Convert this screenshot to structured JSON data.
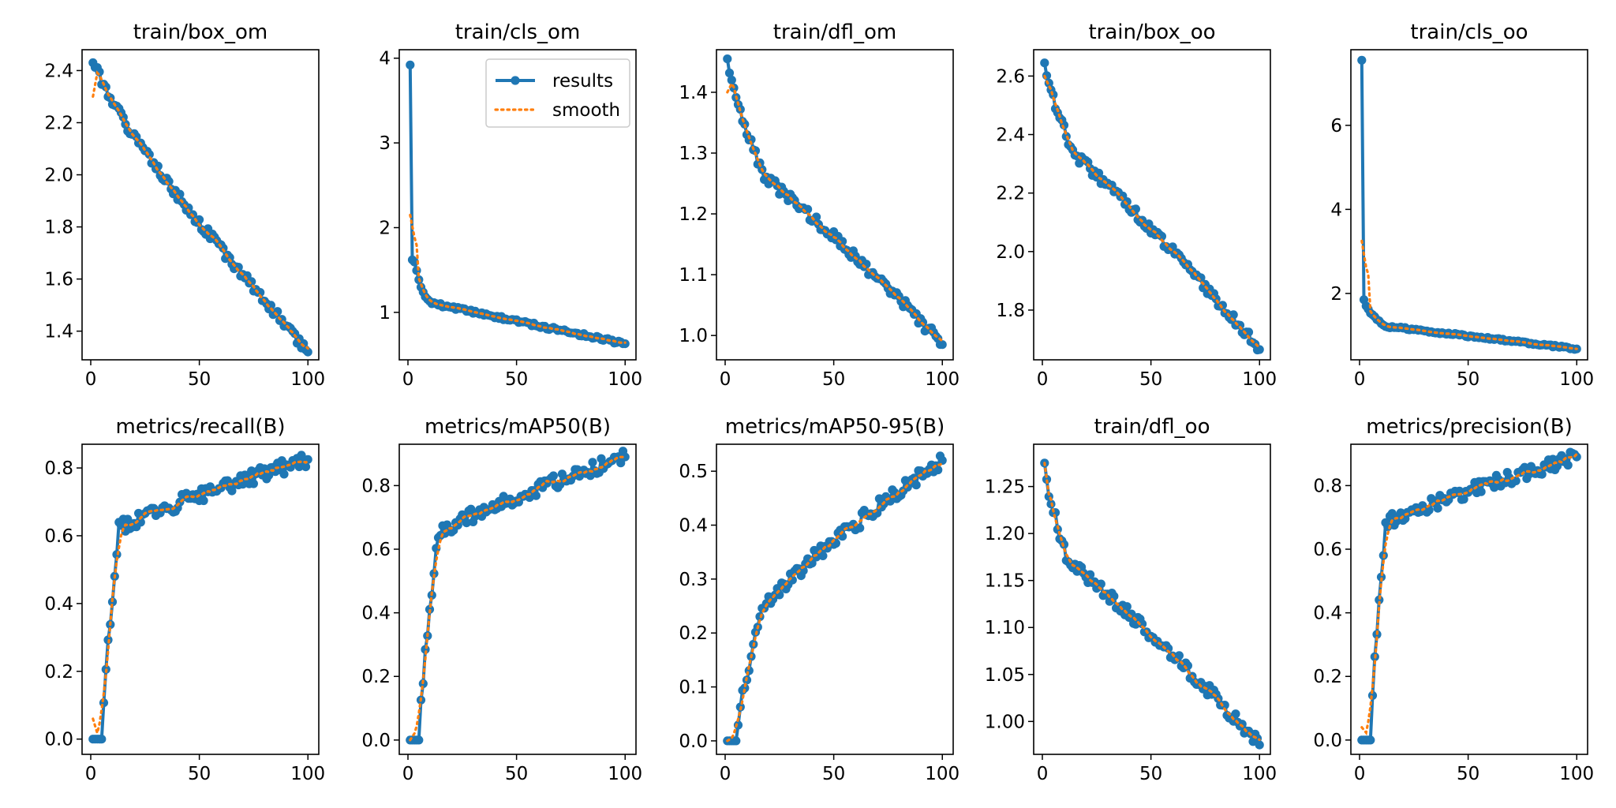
{
  "colors": {
    "results": "#1f77b4",
    "smooth": "#ff7f0e",
    "axes": "#000000",
    "background": "#ffffff"
  },
  "legend": {
    "entries": [
      "results",
      "smooth"
    ],
    "location": "upper-right",
    "panel": 1
  },
  "chart_data": [
    {
      "type": "line",
      "title": "train/box_om",
      "xlim": [
        -4,
        105
      ],
      "ylim": [
        1.29,
        2.48
      ],
      "xticks": [
        0,
        50,
        100
      ],
      "xtick_labels": [
        "0",
        "50",
        "100"
      ],
      "yticks": [
        1.4,
        1.6,
        1.8,
        2.0,
        2.2,
        2.4
      ],
      "ytick_labels": [
        "1.4",
        "1.6",
        "1.8",
        "2.0",
        "2.2",
        "2.4"
      ],
      "start": 2.43,
      "end": 1.32,
      "shape": "linear",
      "smooth_start": 2.3,
      "noise": 0.018,
      "seed": 1,
      "series": [
        {
          "name": "results"
        },
        {
          "name": "smooth"
        }
      ]
    },
    {
      "type": "line",
      "title": "train/cls_om",
      "xlim": [
        -4,
        105
      ],
      "ylim": [
        0.44,
        4.1
      ],
      "xticks": [
        0,
        50,
        100
      ],
      "xtick_labels": [
        "0",
        "50",
        "100"
      ],
      "yticks": [
        1,
        2,
        3,
        4
      ],
      "ytick_labels": [
        "1",
        "2",
        "3",
        "4"
      ],
      "start": 3.92,
      "end": 0.63,
      "shape": "spike",
      "second": 1.62,
      "third": 1.58,
      "knee_value": 1.1,
      "knee_x": 12,
      "smooth_start": 2.15,
      "noise": 0.02,
      "seed": 2,
      "series": [
        {
          "name": "results"
        },
        {
          "name": "smooth"
        }
      ]
    },
    {
      "type": "line",
      "title": "train/dfl_om",
      "xlim": [
        -4,
        105
      ],
      "ylim": [
        0.96,
        1.47
      ],
      "xticks": [
        0,
        50,
        100
      ],
      "xtick_labels": [
        "0",
        "50",
        "100"
      ],
      "yticks": [
        1.0,
        1.1,
        1.2,
        1.3,
        1.4
      ],
      "ytick_labels": [
        "1.0",
        "1.1",
        "1.2",
        "1.3",
        "1.4"
      ],
      "start": 1.455,
      "end": 0.985,
      "shape": "concave",
      "knee_value": 1.26,
      "knee_x": 18,
      "smooth_start": 1.4,
      "noise": 0.009,
      "seed": 3,
      "series": [
        {
          "name": "results"
        },
        {
          "name": "smooth"
        }
      ]
    },
    {
      "type": "line",
      "title": "train/box_oo",
      "xlim": [
        -4,
        105
      ],
      "ylim": [
        1.63,
        2.69
      ],
      "xticks": [
        0,
        50,
        100
      ],
      "xtick_labels": [
        "0",
        "50",
        "100"
      ],
      "yticks": [
        1.8,
        2.0,
        2.2,
        2.4,
        2.6
      ],
      "ytick_labels": [
        "1.8",
        "2.0",
        "2.2",
        "2.4",
        "2.6"
      ],
      "start": 2.645,
      "end": 1.665,
      "shape": "concave",
      "knee_value": 2.33,
      "knee_x": 15,
      "smooth_start": 2.6,
      "noise": 0.018,
      "seed": 4,
      "series": [
        {
          "name": "results"
        },
        {
          "name": "smooth"
        }
      ]
    },
    {
      "type": "line",
      "title": "train/cls_oo",
      "xlim": [
        -4,
        105
      ],
      "ylim": [
        0.42,
        7.8
      ],
      "xticks": [
        0,
        50,
        100
      ],
      "xtick_labels": [
        "0",
        "50",
        "100"
      ],
      "yticks": [
        2,
        4,
        6
      ],
      "ytick_labels": [
        "2",
        "4",
        "6"
      ],
      "start": 7.55,
      "end": 0.68,
      "shape": "spike",
      "second": 1.85,
      "third": 1.7,
      "knee_value": 1.2,
      "knee_x": 15,
      "smooth_start": 3.25,
      "noise": 0.025,
      "seed": 5,
      "series": [
        {
          "name": "results"
        },
        {
          "name": "smooth"
        }
      ]
    },
    {
      "type": "line",
      "title": "metrics/recall(B)",
      "xlim": [
        -4,
        105
      ],
      "ylim": [
        -0.045,
        0.87
      ],
      "xticks": [
        0,
        50,
        100
      ],
      "xtick_labels": [
        "0",
        "50",
        "100"
      ],
      "yticks": [
        0.0,
        0.2,
        0.4,
        0.6,
        0.8
      ],
      "ytick_labels": [
        "0.0",
        "0.2",
        "0.4",
        "0.6",
        "0.8"
      ],
      "start": 0.0,
      "end": 0.825,
      "shape": "rise",
      "ramp_end_x": 13,
      "plateau": 0.62,
      "smooth_start": 0.06,
      "noise": 0.022,
      "seed": 6,
      "series": [
        {
          "name": "results"
        },
        {
          "name": "smooth"
        }
      ]
    },
    {
      "type": "line",
      "title": "metrics/mAP50(B)",
      "xlim": [
        -4,
        105
      ],
      "ylim": [
        -0.045,
        0.93
      ],
      "xticks": [
        0,
        50,
        100
      ],
      "xtick_labels": [
        "0",
        "50",
        "100"
      ],
      "yticks": [
        0.0,
        0.2,
        0.4,
        0.6,
        0.8
      ],
      "ytick_labels": [
        "0.0",
        "0.2",
        "0.4",
        "0.6",
        "0.8"
      ],
      "start": 0.0,
      "end": 0.89,
      "shape": "rise",
      "ramp_end_x": 14,
      "plateau": 0.65,
      "smooth_start": 0.0,
      "noise": 0.022,
      "seed": 7,
      "series": [
        {
          "name": "results"
        },
        {
          "name": "smooth"
        }
      ]
    },
    {
      "type": "line",
      "title": "metrics/mAP50-95(B)",
      "xlim": [
        -4,
        105
      ],
      "ylim": [
        -0.025,
        0.55
      ],
      "xticks": [
        0,
        50,
        100
      ],
      "xtick_labels": [
        "0",
        "50",
        "100"
      ],
      "yticks": [
        0.0,
        0.1,
        0.2,
        0.3,
        0.4,
        0.5
      ],
      "ytick_labels": [
        "0.0",
        "0.1",
        "0.2",
        "0.3",
        "0.4",
        "0.5"
      ],
      "start": 0.0,
      "end": 0.52,
      "shape": "rise",
      "ramp_end_x": 17,
      "plateau": 0.245,
      "smooth_start": 0.0,
      "noise": 0.014,
      "seed": 8,
      "series": [
        {
          "name": "results"
        },
        {
          "name": "smooth"
        }
      ]
    },
    {
      "type": "line",
      "title": "train/dfl_oo",
      "xlim": [
        -4,
        105
      ],
      "ylim": [
        0.965,
        1.295
      ],
      "xticks": [
        0,
        50,
        100
      ],
      "xtick_labels": [
        "0",
        "50",
        "100"
      ],
      "yticks": [
        1.0,
        1.05,
        1.1,
        1.15,
        1.2,
        1.25
      ],
      "ytick_labels": [
        "1.00",
        "1.05",
        "1.10",
        "1.15",
        "1.20",
        "1.25"
      ],
      "start": 1.275,
      "end": 0.975,
      "shape": "concave",
      "knee_value": 1.17,
      "knee_x": 12,
      "smooth_start": 1.275,
      "noise": 0.007,
      "seed": 9,
      "series": [
        {
          "name": "results"
        },
        {
          "name": "smooth"
        }
      ]
    },
    {
      "type": "line",
      "title": "metrics/precision(B)",
      "xlim": [
        -4,
        105
      ],
      "ylim": [
        -0.045,
        0.93
      ],
      "xticks": [
        0,
        50,
        100
      ],
      "xtick_labels": [
        "0",
        "50",
        "100"
      ],
      "yticks": [
        0.0,
        0.2,
        0.4,
        0.6,
        0.8
      ],
      "ytick_labels": [
        "0.0",
        "0.2",
        "0.4",
        "0.6",
        "0.8"
      ],
      "start": 0.0,
      "end": 0.89,
      "shape": "rise",
      "ramp_end_x": 12,
      "plateau": 0.68,
      "smooth_start": 0.04,
      "noise": 0.022,
      "seed": 10,
      "series": [
        {
          "name": "results"
        },
        {
          "name": "smooth"
        }
      ]
    }
  ]
}
